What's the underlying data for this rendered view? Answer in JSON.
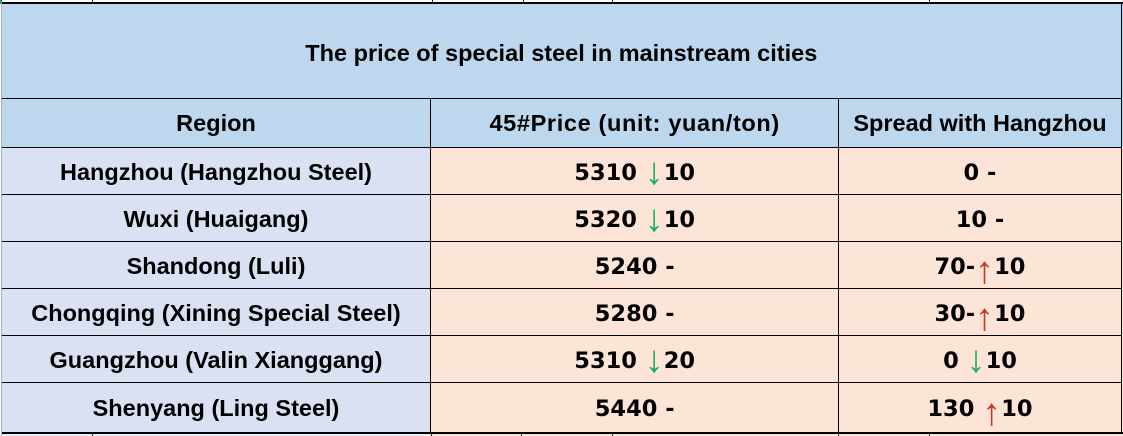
{
  "title": "The price of special steel in mainstream cities",
  "colors": {
    "header_bg": "#BDD7EE",
    "region_bg": "#D9E1F2",
    "value_bg": "#FCE4D6",
    "next_row_region_bg": "#EDF0F9",
    "down_arrow": "#1CAF62",
    "up_arrow": "#C0392B",
    "selection_nub": "#12A76B",
    "sheet_gridline": "#A7ADC6"
  },
  "icons": {
    "down_arrow": "↓",
    "up_arrow": "↑"
  },
  "table": {
    "columns": [
      "Region",
      "45#Price (unit: yuan/ton)",
      "Spread with Hangzhou"
    ],
    "rows": [
      {
        "region": "Hangzhou (Hangzhou Steel)",
        "price": [
          {
            "t": "5310 "
          },
          {
            "t": "↓",
            "c": "down"
          },
          {
            "t": "10"
          }
        ],
        "spread": [
          {
            "t": "0 -"
          }
        ]
      },
      {
        "region": "Wuxi (Huaigang)",
        "price": [
          {
            "t": "5320 "
          },
          {
            "t": "↓",
            "c": "down"
          },
          {
            "t": "10"
          }
        ],
        "spread": [
          {
            "t": "10 -"
          }
        ]
      },
      {
        "region": "Shandong (Luli)",
        "price": [
          {
            "t": "5240 -"
          }
        ],
        "spread": [
          {
            "t": "70-"
          },
          {
            "t": "↑",
            "c": "up"
          },
          {
            "t": "10"
          }
        ]
      },
      {
        "region": "Chongqing (Xining Special Steel)",
        "price": [
          {
            "t": "5280 -"
          }
        ],
        "spread": [
          {
            "t": "30-"
          },
          {
            "t": "↑",
            "c": "up"
          },
          {
            "t": "10"
          }
        ]
      },
      {
        "region": "Guangzhou (Valin Xianggang)",
        "price": [
          {
            "t": "5310 "
          },
          {
            "t": "↓",
            "c": "down"
          },
          {
            "t": "20"
          }
        ],
        "spread": [
          {
            "t": "0 "
          },
          {
            "t": "↓",
            "c": "down"
          },
          {
            "t": "10"
          }
        ]
      },
      {
        "region": "Shenyang (Ling Steel)",
        "price": [
          {
            "t": "5440 -"
          }
        ],
        "spread": [
          {
            "t": "130 "
          },
          {
            "t": "↑",
            "c": "up"
          },
          {
            "t": "10"
          }
        ]
      }
    ]
  },
  "chart_data": {
    "type": "table",
    "title": "The price of special steel in mainstream cities",
    "columns": [
      "Region",
      "45#Price (unit: yuan/ton)",
      "Spread with Hangzhou"
    ],
    "rows": [
      {
        "region": "Hangzhou (Hangzhou Steel)",
        "price": 5310,
        "price_change": -10,
        "spread": 0,
        "spread_change": null
      },
      {
        "region": "Wuxi (Huaigang)",
        "price": 5320,
        "price_change": -10,
        "spread": 10,
        "spread_change": null
      },
      {
        "region": "Shandong (Luli)",
        "price": 5240,
        "price_change": null,
        "spread": 70,
        "spread_change": 10
      },
      {
        "region": "Chongqing (Xining Special Steel)",
        "price": 5280,
        "price_change": null,
        "spread": 30,
        "spread_change": 10
      },
      {
        "region": "Guangzhou (Valin Xianggang)",
        "price": 5310,
        "price_change": -20,
        "spread": 0,
        "spread_change": -10
      },
      {
        "region": "Shenyang (Ling Steel)",
        "price": 5440,
        "price_change": null,
        "spread": 130,
        "spread_change": 10
      }
    ]
  }
}
